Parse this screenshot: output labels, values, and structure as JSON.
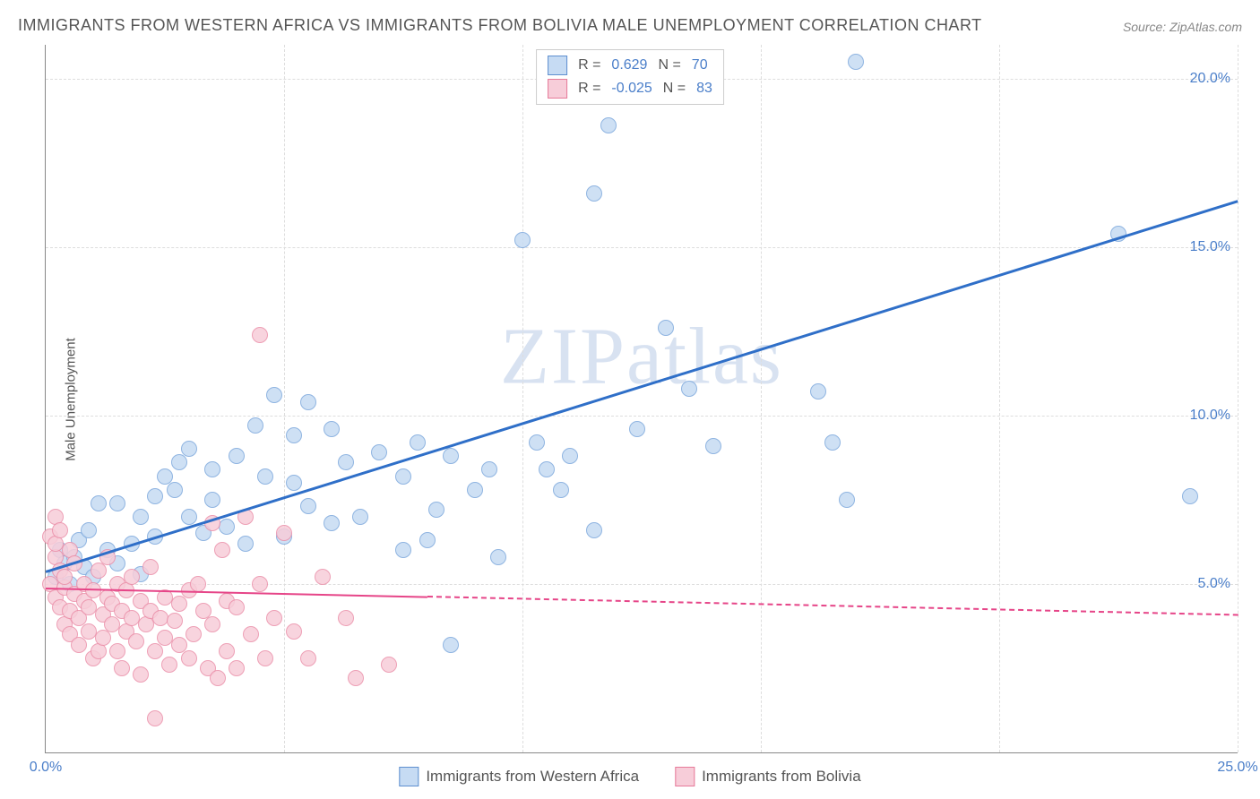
{
  "title": "IMMIGRANTS FROM WESTERN AFRICA VS IMMIGRANTS FROM BOLIVIA MALE UNEMPLOYMENT CORRELATION CHART",
  "source": "Source: ZipAtlas.com",
  "ylabel": "Male Unemployment",
  "watermark": "ZIPatlas",
  "chart": {
    "type": "scatter",
    "xlim": [
      0,
      25
    ],
    "ylim": [
      0,
      21
    ],
    "xticks": [
      0,
      25
    ],
    "xtick_labels": [
      "0.0%",
      "25.0%"
    ],
    "yticks": [
      5,
      10,
      15,
      20
    ],
    "ytick_labels": [
      "5.0%",
      "10.0%",
      "15.0%",
      "20.0%"
    ],
    "vgrid": [
      5,
      10,
      15,
      20,
      25
    ],
    "background_color": "#ffffff",
    "grid_color": "#dddddd",
    "axis_color": "#888888",
    "tick_font_color": "#4a7ec9",
    "marker_radius": 9,
    "marker_stroke": 1.2
  },
  "series": [
    {
      "name": "Immigrants from Western Africa",
      "fill": "#c6dbf3",
      "stroke": "#7ca8dc",
      "swatch_fill": "#c6dbf3",
      "swatch_stroke": "#5e8fcf",
      "R": "0.629",
      "N": "70",
      "trend": {
        "x1": 0,
        "y1": 5.4,
        "x2": 25,
        "y2": 16.4,
        "color": "#2f6fc8",
        "width": 2.5,
        "dashed": false,
        "solid_until_x": 25
      },
      "points": [
        [
          0.2,
          5.2
        ],
        [
          0.3,
          6.0
        ],
        [
          0.4,
          5.6
        ],
        [
          0.5,
          5.0
        ],
        [
          0.6,
          5.8
        ],
        [
          0.7,
          6.3
        ],
        [
          0.8,
          5.5
        ],
        [
          0.9,
          6.6
        ],
        [
          1.0,
          5.2
        ],
        [
          1.1,
          7.4
        ],
        [
          1.3,
          6.0
        ],
        [
          1.5,
          5.6
        ],
        [
          1.5,
          7.4
        ],
        [
          1.8,
          6.2
        ],
        [
          2.0,
          5.3
        ],
        [
          2.0,
          7.0
        ],
        [
          2.3,
          7.6
        ],
        [
          2.3,
          6.4
        ],
        [
          2.5,
          8.2
        ],
        [
          2.7,
          7.8
        ],
        [
          2.8,
          8.6
        ],
        [
          3.0,
          7.0
        ],
        [
          3.0,
          9.0
        ],
        [
          3.3,
          6.5
        ],
        [
          3.5,
          8.4
        ],
        [
          3.5,
          7.5
        ],
        [
          3.8,
          6.7
        ],
        [
          4.0,
          8.8
        ],
        [
          4.2,
          6.2
        ],
        [
          4.4,
          9.7
        ],
        [
          4.6,
          8.2
        ],
        [
          4.8,
          10.6
        ],
        [
          5.0,
          6.4
        ],
        [
          5.2,
          9.4
        ],
        [
          5.2,
          8.0
        ],
        [
          5.5,
          7.3
        ],
        [
          5.5,
          10.4
        ],
        [
          6.0,
          9.6
        ],
        [
          6.0,
          6.8
        ],
        [
          6.3,
          8.6
        ],
        [
          6.6,
          7.0
        ],
        [
          7.0,
          8.9
        ],
        [
          7.5,
          6.0
        ],
        [
          7.5,
          8.2
        ],
        [
          7.8,
          9.2
        ],
        [
          8.0,
          6.3
        ],
        [
          8.2,
          7.2
        ],
        [
          8.5,
          3.2
        ],
        [
          8.5,
          8.8
        ],
        [
          9.0,
          7.8
        ],
        [
          9.3,
          8.4
        ],
        [
          9.5,
          5.8
        ],
        [
          10.0,
          15.2
        ],
        [
          10.3,
          9.2
        ],
        [
          10.5,
          8.4
        ],
        [
          10.8,
          7.8
        ],
        [
          11.0,
          8.8
        ],
        [
          11.5,
          6.6
        ],
        [
          11.5,
          16.6
        ],
        [
          11.8,
          18.6
        ],
        [
          12.4,
          9.6
        ],
        [
          13.0,
          12.6
        ],
        [
          13.5,
          10.8
        ],
        [
          14.0,
          9.1
        ],
        [
          16.2,
          10.7
        ],
        [
          16.5,
          9.2
        ],
        [
          16.8,
          7.5
        ],
        [
          17.0,
          20.5
        ],
        [
          22.5,
          15.4
        ],
        [
          24.0,
          7.6
        ]
      ]
    },
    {
      "name": "Immigrants from Bolivia",
      "fill": "#f7cdd9",
      "stroke": "#eb8fa9",
      "swatch_fill": "#f7cdd9",
      "swatch_stroke": "#e67a99",
      "R": "-0.025",
      "N": "83",
      "trend": {
        "x1": 0,
        "y1": 4.9,
        "x2": 25,
        "y2": 4.1,
        "color": "#e64588",
        "width": 2,
        "dashed": true,
        "solid_until_x": 8
      },
      "points": [
        [
          0.1,
          5.0
        ],
        [
          0.1,
          6.4
        ],
        [
          0.2,
          4.6
        ],
        [
          0.2,
          5.8
        ],
        [
          0.2,
          7.0
        ],
        [
          0.2,
          6.2
        ],
        [
          0.3,
          4.3
        ],
        [
          0.3,
          5.4
        ],
        [
          0.3,
          6.6
        ],
        [
          0.4,
          3.8
        ],
        [
          0.4,
          4.9
        ],
        [
          0.4,
          5.2
        ],
        [
          0.5,
          4.2
        ],
        [
          0.5,
          3.5
        ],
        [
          0.5,
          6.0
        ],
        [
          0.6,
          4.7
        ],
        [
          0.6,
          5.6
        ],
        [
          0.7,
          3.2
        ],
        [
          0.7,
          4.0
        ],
        [
          0.8,
          4.5
        ],
        [
          0.8,
          5.0
        ],
        [
          0.9,
          3.6
        ],
        [
          0.9,
          4.3
        ],
        [
          1.0,
          4.8
        ],
        [
          1.0,
          2.8
        ],
        [
          1.1,
          5.4
        ],
        [
          1.1,
          3.0
        ],
        [
          1.2,
          4.1
        ],
        [
          1.2,
          3.4
        ],
        [
          1.3,
          4.6
        ],
        [
          1.3,
          5.8
        ],
        [
          1.4,
          3.8
        ],
        [
          1.4,
          4.4
        ],
        [
          1.5,
          3.0
        ],
        [
          1.5,
          5.0
        ],
        [
          1.6,
          4.2
        ],
        [
          1.6,
          2.5
        ],
        [
          1.7,
          3.6
        ],
        [
          1.7,
          4.8
        ],
        [
          1.8,
          4.0
        ],
        [
          1.8,
          5.2
        ],
        [
          1.9,
          3.3
        ],
        [
          2.0,
          4.5
        ],
        [
          2.0,
          2.3
        ],
        [
          2.1,
          3.8
        ],
        [
          2.2,
          4.2
        ],
        [
          2.2,
          5.5
        ],
        [
          2.3,
          1.0
        ],
        [
          2.3,
          3.0
        ],
        [
          2.4,
          4.0
        ],
        [
          2.5,
          3.4
        ],
        [
          2.5,
          4.6
        ],
        [
          2.6,
          2.6
        ],
        [
          2.7,
          3.9
        ],
        [
          2.8,
          4.4
        ],
        [
          2.8,
          3.2
        ],
        [
          3.0,
          4.8
        ],
        [
          3.0,
          2.8
        ],
        [
          3.1,
          3.5
        ],
        [
          3.2,
          5.0
        ],
        [
          3.3,
          4.2
        ],
        [
          3.4,
          2.5
        ],
        [
          3.5,
          3.8
        ],
        [
          3.5,
          6.8
        ],
        [
          3.6,
          2.2
        ],
        [
          3.7,
          6.0
        ],
        [
          3.8,
          4.5
        ],
        [
          3.8,
          3.0
        ],
        [
          4.0,
          2.5
        ],
        [
          4.0,
          4.3
        ],
        [
          4.2,
          7.0
        ],
        [
          4.3,
          3.5
        ],
        [
          4.5,
          12.4
        ],
        [
          4.5,
          5.0
        ],
        [
          4.6,
          2.8
        ],
        [
          4.8,
          4.0
        ],
        [
          5.0,
          6.5
        ],
        [
          5.2,
          3.6
        ],
        [
          5.5,
          2.8
        ],
        [
          5.8,
          5.2
        ],
        [
          6.3,
          4.0
        ],
        [
          6.5,
          2.2
        ],
        [
          7.2,
          2.6
        ]
      ]
    }
  ],
  "legend_stat_labels": {
    "R": "R =",
    "N": "N ="
  },
  "bottom_legend_labels": [
    "Immigrants from Western Africa",
    "Immigrants from Bolivia"
  ]
}
